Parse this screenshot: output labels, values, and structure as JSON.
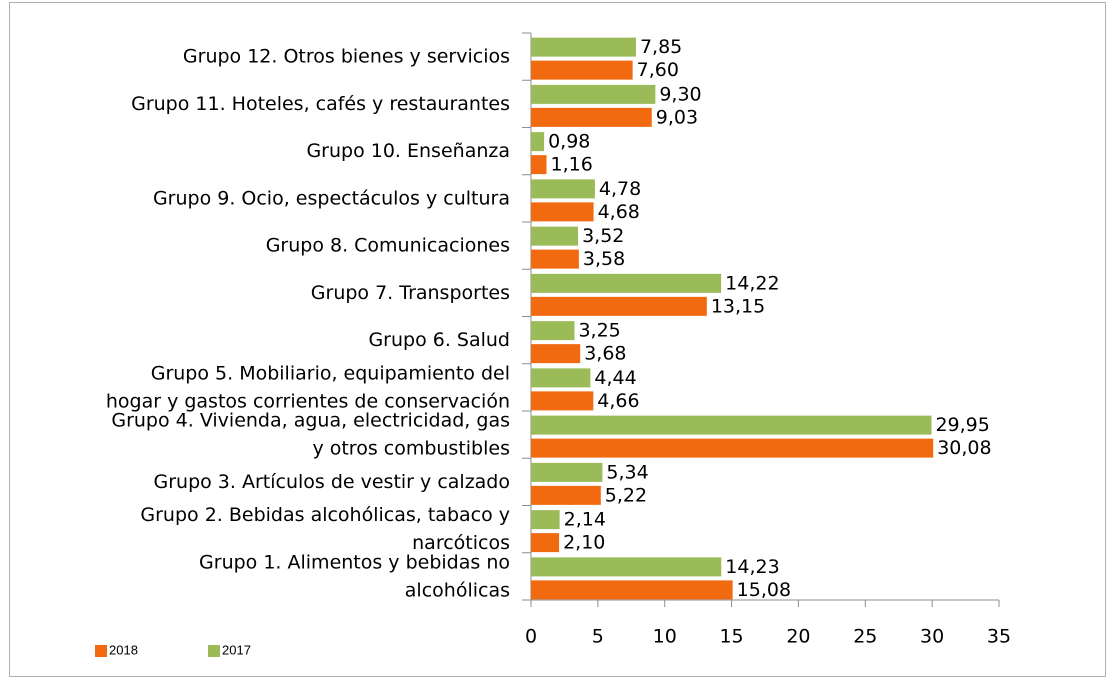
{
  "chart_data": {
    "type": "hbar",
    "categories": [
      "Grupo 1. Alimentos y bebidas no alcohólicas",
      "Grupo 2. Bebidas alcohólicas, tabaco y narcóticos",
      "Grupo 3. Artículos de vestir y calzado",
      "Grupo 4. Vivienda, agua, electricidad, gas y otros combustibles",
      "Grupo 5. Mobiliario, equipamiento del hogar y gastos corrientes de conservación",
      "Grupo 6. Salud",
      "Grupo 7. Transportes",
      "Grupo 8. Comunicaciones",
      "Grupo 9. Ocio, espectáculos y cultura",
      "Grupo 10. Enseñanza",
      "Grupo 11. Hoteles, cafés y restaurantes",
      "Grupo 12. Otros bienes y servicios"
    ],
    "series": [
      {
        "name": "2018",
        "color": "#f26a10",
        "values": [
          15.08,
          2.1,
          5.22,
          30.08,
          4.66,
          3.68,
          13.15,
          3.58,
          4.68,
          1.16,
          9.03,
          7.6
        ],
        "value_labels": [
          "15,08",
          "2,10",
          "5,22",
          "30,08",
          "4,66",
          "3,68",
          "13,15",
          "3,58",
          "4,68",
          "1,16",
          "9,03",
          "7,60"
        ]
      },
      {
        "name": "2017",
        "color": "#9bbb59",
        "values": [
          14.23,
          2.14,
          5.34,
          29.95,
          4.44,
          3.25,
          14.22,
          3.52,
          4.78,
          0.98,
          9.3,
          7.85
        ],
        "value_labels": [
          "14,23",
          "2,14",
          "5,34",
          "29,95",
          "4,44",
          "3,25",
          "14,22",
          "3,52",
          "4,78",
          "0,98",
          "9,30",
          "7,85"
        ]
      }
    ],
    "xlim": [
      0,
      35
    ],
    "xticks": [
      0,
      5,
      10,
      15,
      20,
      25,
      30,
      35
    ],
    "grid": false,
    "legend": "bottom-left"
  }
}
